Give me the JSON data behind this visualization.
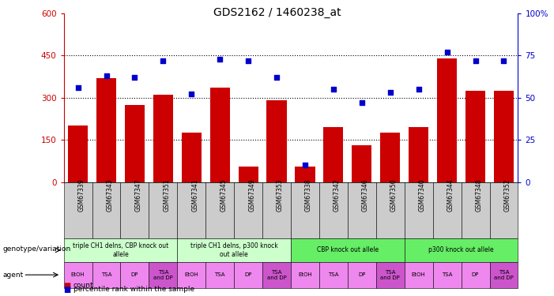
{
  "title": "GDS2162 / 1460238_at",
  "samples": [
    "GSM67339",
    "GSM67343",
    "GSM67347",
    "GSM67351",
    "GSM67341",
    "GSM67345",
    "GSM67349",
    "GSM67353",
    "GSM67338",
    "GSM67342",
    "GSM67346",
    "GSM67350",
    "GSM67340",
    "GSM67344",
    "GSM67348",
    "GSM67352"
  ],
  "counts": [
    200,
    370,
    275,
    310,
    175,
    335,
    55,
    290,
    55,
    195,
    130,
    175,
    195,
    440,
    325,
    325
  ],
  "percentiles": [
    56,
    63,
    62,
    72,
    52,
    73,
    72,
    62,
    10,
    55,
    47,
    53,
    55,
    77,
    72,
    72
  ],
  "bar_color": "#cc0000",
  "dot_color": "#0000cc",
  "ylim_left": [
    0,
    600
  ],
  "ylim_right": [
    0,
    100
  ],
  "yticks_left": [
    0,
    150,
    300,
    450,
    600
  ],
  "yticks_right": [
    0,
    25,
    50,
    75,
    100
  ],
  "hline_values": [
    150,
    300,
    450
  ],
  "genotype_groups": [
    {
      "label": "triple CH1 delns, CBP knock out\nallele",
      "start": 0,
      "end": 4,
      "color": "#ccffcc"
    },
    {
      "label": "triple CH1 delns, p300 knock\nout allele",
      "start": 4,
      "end": 8,
      "color": "#ccffcc"
    },
    {
      "label": "CBP knock out allele",
      "start": 8,
      "end": 12,
      "color": "#66ee66"
    },
    {
      "label": "p300 knock out allele",
      "start": 12,
      "end": 16,
      "color": "#66ee66"
    }
  ],
  "agent_labels": [
    "EtOH",
    "TSA",
    "DP",
    "TSA\nand DP",
    "EtOH",
    "TSA",
    "DP",
    "TSA\nand DP",
    "EtOH",
    "TSA",
    "DP",
    "TSA\nand DP",
    "EtOH",
    "TSA",
    "DP",
    "TSA\nand DP"
  ],
  "agent_colors": [
    "#ee88ee",
    "#ee88ee",
    "#ee88ee",
    "#cc55cc",
    "#ee88ee",
    "#ee88ee",
    "#ee88ee",
    "#cc55cc",
    "#ee88ee",
    "#ee88ee",
    "#ee88ee",
    "#cc55cc",
    "#ee88ee",
    "#ee88ee",
    "#ee88ee",
    "#cc55cc"
  ],
  "left_axis_color": "#cc0000",
  "right_axis_color": "#0000cc",
  "bg_color": "#ffffff",
  "xticklabel_bg": "#cccccc"
}
